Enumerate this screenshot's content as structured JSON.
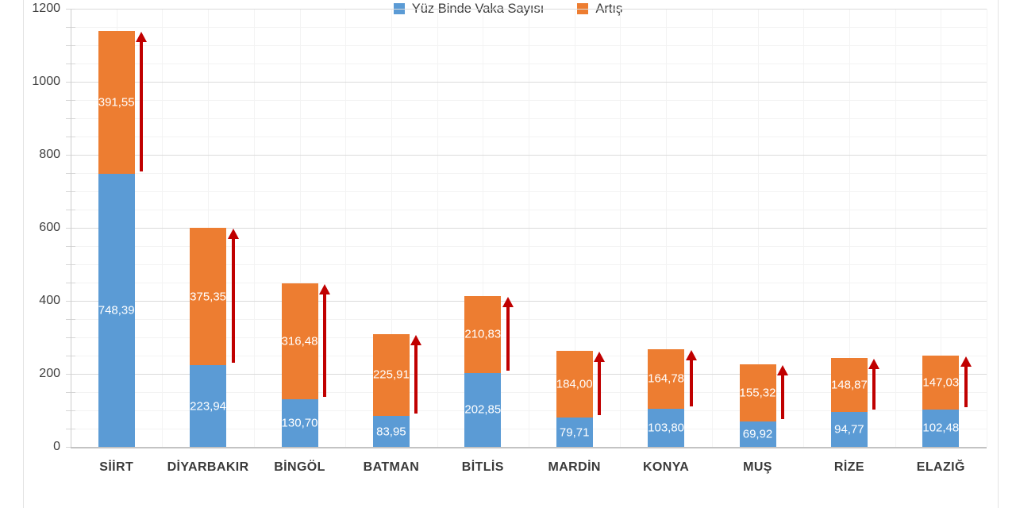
{
  "chart_data": {
    "type": "bar",
    "stacked": true,
    "categories": [
      "SİİRT",
      "DİYARBAKIR",
      "BİNGÖL",
      "BATMAN",
      "BİTLİS",
      "MARDİN",
      "KONYA",
      "MUŞ",
      "RİZE",
      "ELAZIĞ"
    ],
    "series": [
      {
        "name": "Yüz Binde Vaka Sayısı",
        "color": "#5B9BD5",
        "values": [
          748.39,
          223.94,
          130.7,
          83.95,
          202.85,
          79.71,
          103.8,
          69.92,
          94.77,
          102.48
        ],
        "labels": [
          "748,39",
          "223,94",
          "130,70",
          "83,95",
          "202,85",
          "79,71",
          "103,80",
          "69,92",
          "94,77",
          "102,48"
        ]
      },
      {
        "name": "Artış",
        "color": "#ED7D31",
        "values": [
          391.55,
          375.35,
          316.48,
          225.91,
          210.83,
          184.0,
          164.78,
          155.32,
          148.87,
          147.03
        ],
        "labels": [
          "391,55",
          "375,35",
          "316,48",
          "225,91",
          "210,83",
          "184,00",
          "164,78",
          "155,32",
          "148,87",
          "147,03"
        ]
      }
    ],
    "y_axis": {
      "min": 0,
      "max": 1200,
      "major_step": 200,
      "minor_step": 50,
      "tick_labels": [
        "0",
        "200",
        "400",
        "600",
        "800",
        "1000",
        "1200"
      ]
    },
    "xlabel": "",
    "ylabel": "",
    "grid": "major and minor gridlines on",
    "legend": {
      "position": "bottom"
    },
    "annotations": {
      "increase_arrows": "red upward arrow beside each bar spanning the increase segment",
      "arrow_color": "#C00000"
    },
    "colors": {
      "bar_label_text": "#FFFFFF",
      "axis_text": "#404040",
      "background": "#FFFFFF"
    }
  }
}
